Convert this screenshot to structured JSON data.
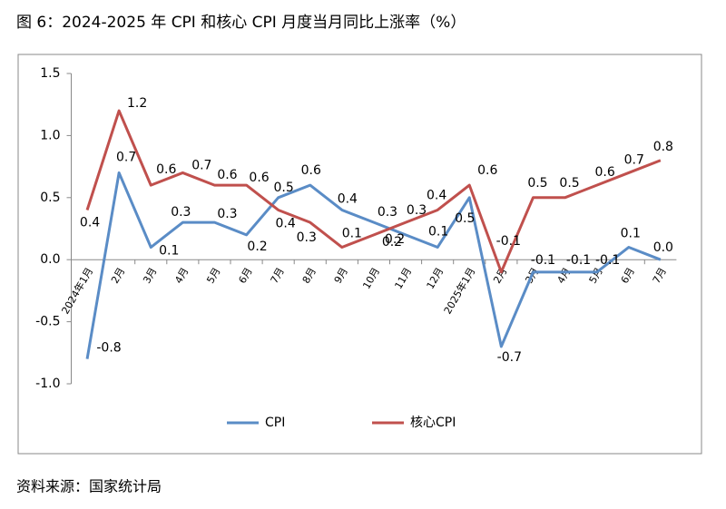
{
  "chart_data": {
    "type": "line",
    "title": "图 6：2024-2025 年 CPI 和核心 CPI 月度当月同比上涨率（%）",
    "source": "资料来源：国家统计局",
    "categories": [
      "2024年1月",
      "2月",
      "3月",
      "4月",
      "5月",
      "6月",
      "7月",
      "8月",
      "9月",
      "10月",
      "11月",
      "12月",
      "2025年1月",
      "2月",
      "3月",
      "4月",
      "5月",
      "6月",
      "7月"
    ],
    "series": [
      {
        "name": "CPI",
        "color": "#5a8cc6",
        "values": [
          -0.8,
          0.7,
          0.1,
          0.3,
          0.3,
          0.2,
          0.5,
          0.6,
          0.4,
          0.3,
          0.2,
          0.1,
          0.5,
          -0.7,
          -0.1,
          -0.1,
          -0.1,
          0.1,
          0.0
        ],
        "value_labels": [
          "-0.8",
          "0.7",
          "0.1",
          "0.3",
          "0.3",
          "0.2",
          "0.5",
          "0.6",
          "0.4",
          "0.3",
          "0.2",
          "0.1",
          "0.5",
          "-0.7",
          "-0.1",
          "-0.1",
          "-0.1",
          "0.1",
          "0.0"
        ]
      },
      {
        "name": "核心CPI",
        "color": "#c0504d",
        "values": [
          0.4,
          1.2,
          0.6,
          0.7,
          0.6,
          0.6,
          0.4,
          0.3,
          0.1,
          0.2,
          0.3,
          0.4,
          0.6,
          -0.1,
          0.5,
          0.5,
          0.6,
          0.7,
          0.8
        ]
      }
    ],
    "ylim": [
      -1.0,
      1.5
    ],
    "yticks": [
      {
        "value": -1.0,
        "label": "-1.0"
      },
      -0.5,
      {
        "value": 0.0,
        "label": "0.0"
      },
      0.5,
      {
        "value": 1.0,
        "label": "1.0"
      },
      1.5
    ]
  }
}
